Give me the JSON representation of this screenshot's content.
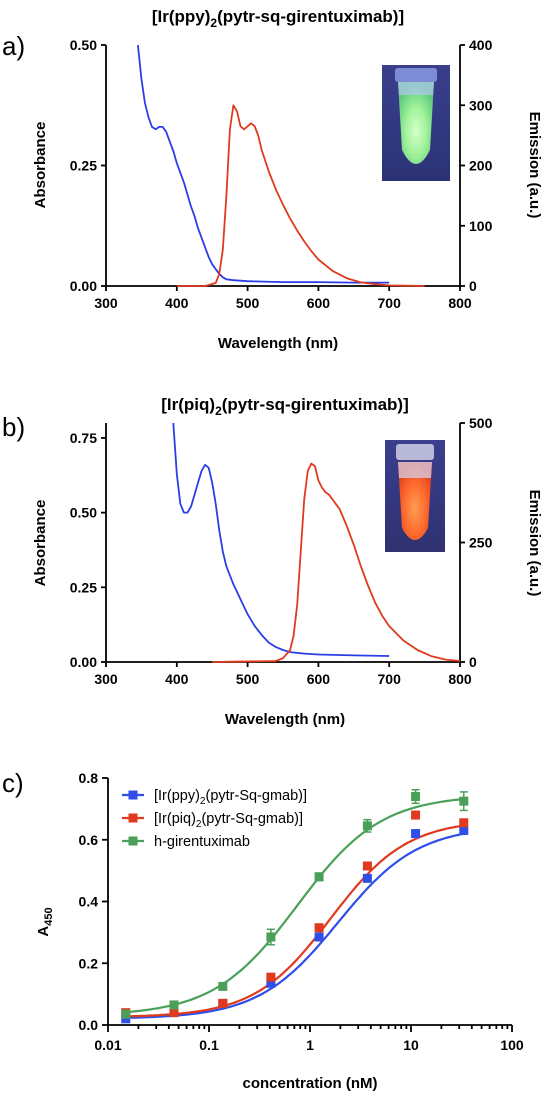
{
  "chart_data": [
    {
      "panel": "a)",
      "type": "line",
      "title": "[Ir(ppy)",
      "title_sub": "2",
      "title_end": "(pytr-sq-girentuximab)]",
      "xlabel": "Wavelength (nm)",
      "ylabel": "Absorbance",
      "y2label": "Emission (a.u.)",
      "xlim": [
        300,
        800
      ],
      "ylim": [
        0,
        0.5
      ],
      "y2lim": [
        0,
        400
      ],
      "x_ticks": [
        "300",
        "400",
        "500",
        "600",
        "700",
        "800"
      ],
      "y_ticks": [
        "0.00",
        "0.25",
        "0.50"
      ],
      "y2_ticks": [
        "0",
        "100",
        "200",
        "300",
        "400"
      ],
      "inset": "photo of vial with green emission",
      "series": [
        {
          "axis": "left",
          "color": "#2b3ee6",
          "x": [
            345,
            350,
            355,
            360,
            365,
            370,
            375,
            380,
            385,
            390,
            395,
            400,
            405,
            410,
            415,
            420,
            425,
            430,
            435,
            440,
            445,
            450,
            455,
            460,
            465,
            470,
            480,
            500,
            550,
            600,
            650,
            700
          ],
          "y": [
            0.5,
            0.43,
            0.38,
            0.35,
            0.33,
            0.325,
            0.33,
            0.33,
            0.32,
            0.3,
            0.28,
            0.255,
            0.235,
            0.215,
            0.19,
            0.165,
            0.145,
            0.12,
            0.1,
            0.08,
            0.06,
            0.045,
            0.035,
            0.025,
            0.018,
            0.014,
            0.012,
            0.01,
            0.008,
            0.008,
            0.007,
            0.007
          ]
        },
        {
          "axis": "right",
          "color": "#e03a1e",
          "x": [
            400,
            440,
            455,
            460,
            465,
            470,
            475,
            480,
            485,
            490,
            495,
            500,
            505,
            510,
            515,
            520,
            530,
            540,
            550,
            560,
            570,
            580,
            590,
            600,
            620,
            640,
            660,
            680,
            700,
            750
          ],
          "y": [
            0,
            0,
            5,
            20,
            60,
            150,
            260,
            300,
            290,
            265,
            260,
            265,
            270,
            265,
            250,
            225,
            190,
            160,
            135,
            112,
            92,
            74,
            58,
            44,
            25,
            13,
            6,
            3,
            1,
            0
          ]
        }
      ]
    },
    {
      "panel": "b)",
      "type": "line",
      "title": "[Ir(piq)",
      "title_sub": "2",
      "title_end": "(pytr-sq-girentuximab)]",
      "xlabel": "Wavelength (nm)",
      "ylabel": "Absorbance",
      "y2label": "Emission (a.u.)",
      "xlim": [
        300,
        800
      ],
      "ylim": [
        0,
        0.8
      ],
      "y2lim": [
        0,
        500
      ],
      "x_ticks": [
        "300",
        "400",
        "500",
        "600",
        "700",
        "800"
      ],
      "y_ticks": [
        "0.00",
        "0.25",
        "0.50",
        "0.75"
      ],
      "y2_ticks": [
        "0",
        "250",
        "500"
      ],
      "inset": "photo of vial with orange-red emission",
      "series": [
        {
          "axis": "left",
          "color": "#2b3ee6",
          "x": [
            395,
            400,
            405,
            410,
            415,
            420,
            425,
            430,
            435,
            440,
            445,
            450,
            455,
            460,
            465,
            470,
            480,
            490,
            500,
            510,
            520,
            530,
            540,
            550,
            560,
            580,
            600,
            650,
            700
          ],
          "y": [
            0.8,
            0.63,
            0.53,
            0.5,
            0.5,
            0.52,
            0.56,
            0.6,
            0.64,
            0.66,
            0.65,
            0.6,
            0.53,
            0.44,
            0.37,
            0.32,
            0.26,
            0.21,
            0.16,
            0.12,
            0.09,
            0.065,
            0.05,
            0.04,
            0.033,
            0.028,
            0.025,
            0.022,
            0.02
          ]
        },
        {
          "axis": "right",
          "color": "#e03a1e",
          "x": [
            450,
            540,
            550,
            560,
            565,
            570,
            575,
            580,
            585,
            590,
            595,
            600,
            605,
            610,
            615,
            620,
            625,
            630,
            640,
            650,
            660,
            670,
            680,
            690,
            700,
            720,
            740,
            760,
            780,
            800
          ],
          "y": [
            0,
            2,
            8,
            25,
            55,
            120,
            230,
            340,
            400,
            415,
            410,
            380,
            365,
            355,
            350,
            340,
            330,
            320,
            285,
            245,
            200,
            160,
            125,
            97,
            75,
            45,
            25,
            12,
            5,
            2
          ]
        }
      ]
    },
    {
      "panel": "c)",
      "type": "scatter",
      "xscale": "log",
      "xlabel": "concentration (nM)",
      "ylabel": "A",
      "ylabel_sub": "450",
      "xlim": [
        0.01,
        100
      ],
      "ylim": [
        0,
        0.8
      ],
      "x_ticks": [
        "0.01",
        "0.1",
        "1",
        "10",
        "100"
      ],
      "y_ticks": [
        "0.0",
        "0.2",
        "0.4",
        "0.6",
        "0.8"
      ],
      "legend_position": "top-left",
      "x": [
        0.015,
        0.045,
        0.137,
        0.41,
        1.23,
        3.7,
        11.1,
        33.3
      ],
      "series": [
        {
          "name": "[Ir(ppy)",
          "name_sub": "2",
          "name_end": "(pytr-Sq-gmab)]",
          "color": "#2f4ee8",
          "values": [
            0.02,
            0.045,
            0.07,
            0.135,
            0.285,
            0.475,
            0.62,
            0.63
          ],
          "fit": [
            0.02,
            0.645,
            1.9,
            1.1
          ]
        },
        {
          "name": "[Ir(piq)",
          "name_sub": "2",
          "name_end": "(pytr-Sq-gmab)]",
          "color": "#e03a1e",
          "values": [
            0.04,
            0.04,
            0.07,
            0.155,
            0.315,
            0.515,
            0.68,
            0.655
          ],
          "fit": [
            0.025,
            0.665,
            1.6,
            1.15
          ]
        },
        {
          "name": "h-girentuximab",
          "color": "#4aa058",
          "values": [
            0.035,
            0.065,
            0.125,
            0.285,
            0.48,
            0.645,
            0.74,
            0.725
          ],
          "errors": [
            0.005,
            0.005,
            0.01,
            0.025,
            0.012,
            0.02,
            0.022,
            0.03
          ],
          "fit": [
            0.03,
            0.745,
            0.75,
            1.05
          ]
        }
      ]
    }
  ]
}
